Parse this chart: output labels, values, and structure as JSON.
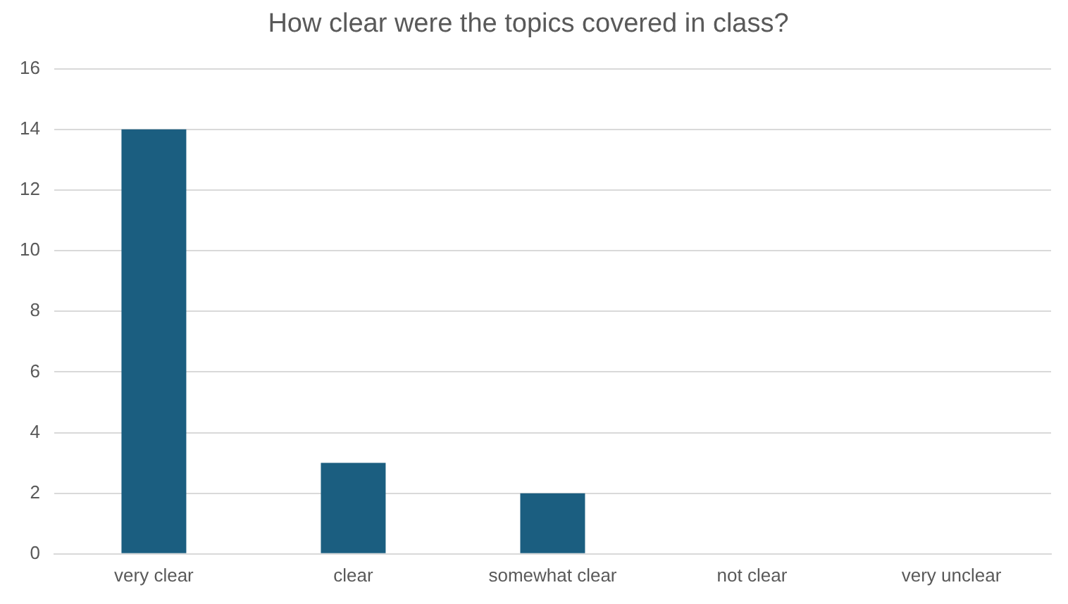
{
  "chart_data": {
    "type": "bar",
    "title": "How clear were the topics covered in class?",
    "categories": [
      "very clear",
      "clear",
      "somewhat clear",
      "not clear",
      "very unclear"
    ],
    "values": [
      14,
      3,
      2,
      0,
      0
    ],
    "color": "#1b5e80",
    "ylim": [
      0,
      16
    ],
    "yticks": [
      0,
      2,
      4,
      6,
      8,
      10,
      12,
      14,
      16
    ],
    "grid": "y"
  }
}
